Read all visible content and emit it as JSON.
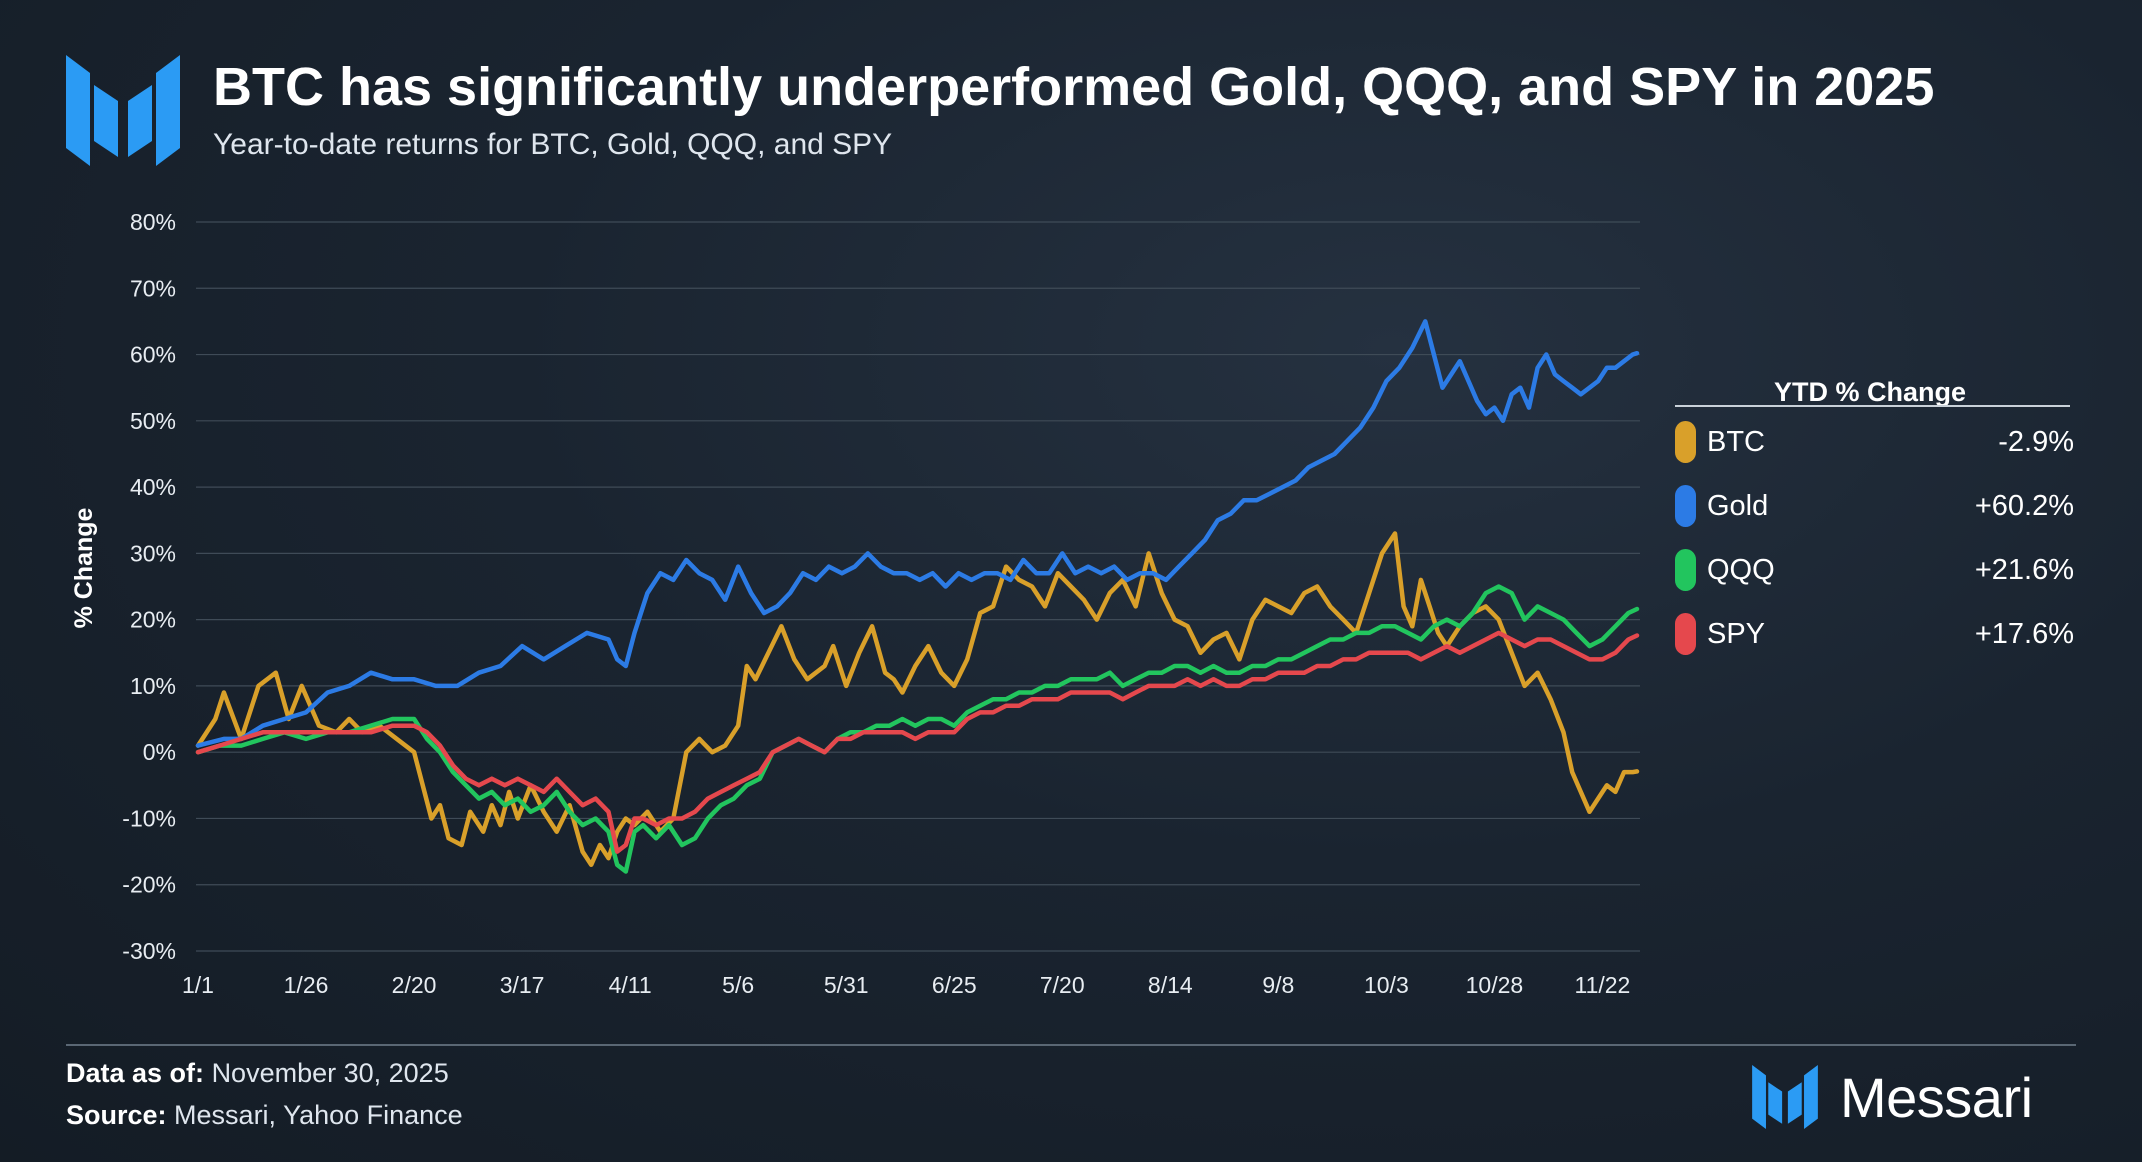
{
  "header": {
    "title": "BTC has significantly underperformed Gold, QQQ, and SPY in 2025",
    "subtitle": "Year-to-date returns for BTC, Gold, QQQ, and SPY"
  },
  "footer": {
    "data_as_of_label": "Data as of:",
    "data_as_of_value": "November 30, 2025",
    "source_label": "Source:",
    "source_value": "Messari, Yahoo Finance",
    "brand": "Messari"
  },
  "chart_data": {
    "type": "line",
    "title": "BTC has significantly underperformed Gold, QQQ, and SPY in 2025",
    "subtitle": "Year-to-date returns for BTC, Gold, QQQ, and SPY",
    "xlabel": "",
    "ylabel": "% Change",
    "ylim": [
      -30,
      80
    ],
    "yticks": [
      -30,
      -20,
      -10,
      0,
      10,
      20,
      30,
      40,
      50,
      60,
      70,
      80
    ],
    "ytick_labels": [
      "-30%",
      "-20%",
      "-10%",
      "0%",
      "10%",
      "20%",
      "30%",
      "40%",
      "50%",
      "60%",
      "70%",
      "80%"
    ],
    "x_tick_labels": [
      "1/1",
      "1/26",
      "2/20",
      "3/17",
      "4/11",
      "5/6",
      "5/31",
      "6/25",
      "7/20",
      "8/14",
      "9/8",
      "10/3",
      "10/28",
      "11/22"
    ],
    "x_tick_days": [
      0,
      25,
      50,
      75,
      100,
      125,
      150,
      175,
      200,
      225,
      250,
      275,
      300,
      325
    ],
    "x_max_day": 333,
    "grid": true,
    "legend_position": "right",
    "legend_title": "YTD % Change",
    "series": [
      {
        "name": "BTC",
        "color": "#d9a02a",
        "ytd_label": "-2.9%",
        "days": [
          0,
          4,
          6,
          10,
          14,
          18,
          21,
          24,
          28,
          32,
          35,
          38,
          42,
          46,
          50,
          54,
          56,
          58,
          61,
          63,
          66,
          68,
          70,
          72,
          74,
          77,
          80,
          83,
          86,
          89,
          91,
          93,
          95,
          97,
          99,
          101,
          104,
          107,
          110,
          113,
          116,
          119,
          122,
          125,
          127,
          129,
          132,
          135,
          138,
          141,
          143,
          145,
          147,
          150,
          153,
          156,
          159,
          161,
          163,
          166,
          169,
          172,
          175,
          178,
          181,
          184,
          187,
          190,
          193,
          196,
          199,
          202,
          205,
          208,
          211,
          214,
          217,
          220,
          223,
          226,
          229,
          232,
          235,
          238,
          241,
          244,
          247,
          250,
          253,
          256,
          259,
          262,
          265,
          268,
          271,
          274,
          277,
          279,
          281,
          283,
          285,
          287,
          289,
          292,
          295,
          298,
          301,
          304,
          307,
          310,
          313,
          316,
          318,
          320,
          322,
          324,
          326,
          328,
          330,
          332,
          333
        ],
        "values": [
          1,
          5,
          9,
          2,
          10,
          12,
          5,
          10,
          4,
          3,
          5,
          3,
          4,
          2,
          0,
          -10,
          -8,
          -13,
          -14,
          -9,
          -12,
          -8,
          -11,
          -6,
          -10,
          -5,
          -9,
          -12,
          -8,
          -15,
          -17,
          -14,
          -16,
          -12,
          -10,
          -11,
          -9,
          -12,
          -10,
          0,
          2,
          0,
          1,
          4,
          13,
          11,
          15,
          19,
          14,
          11,
          12,
          13,
          16,
          10,
          15,
          19,
          12,
          11,
          9,
          13,
          16,
          12,
          10,
          14,
          21,
          22,
          28,
          26,
          25,
          22,
          27,
          25,
          23,
          20,
          24,
          26,
          22,
          30,
          24,
          20,
          19,
          15,
          17,
          18,
          14,
          20,
          23,
          22,
          21,
          24,
          25,
          22,
          20,
          18,
          24,
          30,
          33,
          22,
          19,
          26,
          22,
          18,
          16,
          19,
          21,
          22,
          20,
          15,
          10,
          12,
          8,
          3,
          -3,
          -6,
          -9,
          -7,
          -5,
          -6,
          -3,
          -3,
          -2.9
        ]
      },
      {
        "name": "Gold",
        "color": "#2c7be5",
        "ytd_label": "+60.2%",
        "days": [
          0,
          6,
          10,
          15,
          20,
          25,
          30,
          35,
          40,
          45,
          50,
          55,
          60,
          65,
          70,
          75,
          80,
          85,
          90,
          95,
          97,
          99,
          101,
          104,
          107,
          110,
          113,
          116,
          119,
          122,
          125,
          128,
          131,
          134,
          137,
          140,
          143,
          146,
          149,
          152,
          155,
          158,
          161,
          164,
          167,
          170,
          173,
          176,
          179,
          182,
          185,
          188,
          191,
          194,
          197,
          200,
          203,
          206,
          209,
          212,
          215,
          218,
          221,
          224,
          227,
          230,
          233,
          236,
          239,
          242,
          245,
          248,
          251,
          254,
          257,
          260,
          263,
          266,
          269,
          272,
          275,
          278,
          281,
          284,
          286,
          288,
          290,
          292,
          294,
          296,
          298,
          300,
          302,
          304,
          306,
          308,
          310,
          312,
          314,
          316,
          318,
          320,
          322,
          324,
          326,
          328,
          330,
          332,
          333
        ],
        "values": [
          1,
          2,
          2,
          4,
          5,
          6,
          9,
          10,
          12,
          11,
          11,
          10,
          10,
          12,
          13,
          16,
          14,
          16,
          18,
          17,
          14,
          13,
          18,
          24,
          27,
          26,
          29,
          27,
          26,
          23,
          28,
          24,
          21,
          22,
          24,
          27,
          26,
          28,
          27,
          28,
          30,
          28,
          27,
          27,
          26,
          27,
          25,
          27,
          26,
          27,
          27,
          26,
          29,
          27,
          27,
          30,
          27,
          28,
          27,
          28,
          26,
          27,
          27,
          26,
          28,
          30,
          32,
          35,
          36,
          38,
          38,
          39,
          40,
          41,
          43,
          44,
          45,
          47,
          49,
          52,
          56,
          58,
          61,
          65,
          60,
          55,
          57,
          59,
          56,
          53,
          51,
          52,
          50,
          54,
          55,
          52,
          58,
          60,
          57,
          56,
          55,
          54,
          55,
          56,
          58,
          58,
          59,
          60,
          60.2
        ]
      },
      {
        "name": "QQQ",
        "color": "#22c55e",
        "ytd_label": "+21.6%",
        "days": [
          0,
          5,
          10,
          15,
          20,
          25,
          30,
          35,
          40,
          45,
          50,
          53,
          56,
          59,
          62,
          65,
          68,
          71,
          74,
          77,
          80,
          83,
          86,
          89,
          92,
          95,
          97,
          99,
          101,
          103,
          106,
          109,
          112,
          115,
          118,
          121,
          124,
          127,
          130,
          133,
          136,
          139,
          142,
          145,
          148,
          151,
          154,
          157,
          160,
          163,
          166,
          169,
          172,
          175,
          178,
          181,
          184,
          187,
          190,
          193,
          196,
          199,
          202,
          205,
          208,
          211,
          214,
          217,
          220,
          223,
          226,
          229,
          232,
          235,
          238,
          241,
          244,
          247,
          250,
          253,
          256,
          259,
          262,
          265,
          268,
          271,
          274,
          277,
          280,
          283,
          286,
          289,
          292,
          295,
          298,
          301,
          304,
          307,
          310,
          313,
          316,
          319,
          322,
          325,
          328,
          331,
          333
        ],
        "values": [
          0,
          1,
          1,
          2,
          3,
          2,
          3,
          3,
          4,
          5,
          5,
          2,
          0,
          -3,
          -5,
          -7,
          -6,
          -8,
          -7,
          -9,
          -8,
          -6,
          -9,
          -11,
          -10,
          -12,
          -17,
          -18,
          -12,
          -11,
          -13,
          -11,
          -14,
          -13,
          -10,
          -8,
          -7,
          -5,
          -4,
          0,
          1,
          2,
          1,
          0,
          2,
          3,
          3,
          4,
          4,
          5,
          4,
          5,
          5,
          4,
          6,
          7,
          8,
          8,
          9,
          9,
          10,
          10,
          11,
          11,
          11,
          12,
          10,
          11,
          12,
          12,
          13,
          13,
          12,
          13,
          12,
          12,
          13,
          13,
          14,
          14,
          15,
          16,
          17,
          17,
          18,
          18,
          19,
          19,
          18,
          17,
          19,
          20,
          19,
          21,
          24,
          25,
          24,
          20,
          22,
          21,
          20,
          18,
          16,
          17,
          19,
          21,
          21.6
        ]
      },
      {
        "name": "SPY",
        "color": "#e5484d",
        "ytd_label": "+17.6%",
        "days": [
          0,
          5,
          10,
          15,
          20,
          25,
          30,
          35,
          40,
          45,
          50,
          53,
          56,
          59,
          62,
          65,
          68,
          71,
          74,
          77,
          80,
          83,
          86,
          89,
          92,
          95,
          97,
          99,
          101,
          103,
          106,
          109,
          112,
          115,
          118,
          121,
          124,
          127,
          130,
          133,
          136,
          139,
          142,
          145,
          148,
          151,
          154,
          157,
          160,
          163,
          166,
          169,
          172,
          175,
          178,
          181,
          184,
          187,
          190,
          193,
          196,
          199,
          202,
          205,
          208,
          211,
          214,
          217,
          220,
          223,
          226,
          229,
          232,
          235,
          238,
          241,
          244,
          247,
          250,
          253,
          256,
          259,
          262,
          265,
          268,
          271,
          274,
          277,
          280,
          283,
          286,
          289,
          292,
          295,
          298,
          301,
          304,
          307,
          310,
          313,
          316,
          319,
          322,
          325,
          328,
          331,
          333
        ],
        "values": [
          0,
          1,
          2,
          3,
          3,
          3,
          3,
          3,
          3,
          4,
          4,
          3,
          1,
          -2,
          -4,
          -5,
          -4,
          -5,
          -4,
          -5,
          -6,
          -4,
          -6,
          -8,
          -7,
          -9,
          -15,
          -14,
          -10,
          -10,
          -11,
          -10,
          -10,
          -9,
          -7,
          -6,
          -5,
          -4,
          -3,
          0,
          1,
          2,
          1,
          0,
          2,
          2,
          3,
          3,
          3,
          3,
          2,
          3,
          3,
          3,
          5,
          6,
          6,
          7,
          7,
          8,
          8,
          8,
          9,
          9,
          9,
          9,
          8,
          9,
          10,
          10,
          10,
          11,
          10,
          11,
          10,
          10,
          11,
          11,
          12,
          12,
          12,
          13,
          13,
          14,
          14,
          15,
          15,
          15,
          15,
          14,
          15,
          16,
          15,
          16,
          17,
          18,
          17,
          16,
          17,
          17,
          16,
          15,
          14,
          14,
          15,
          17,
          17.6
        ]
      }
    ]
  }
}
